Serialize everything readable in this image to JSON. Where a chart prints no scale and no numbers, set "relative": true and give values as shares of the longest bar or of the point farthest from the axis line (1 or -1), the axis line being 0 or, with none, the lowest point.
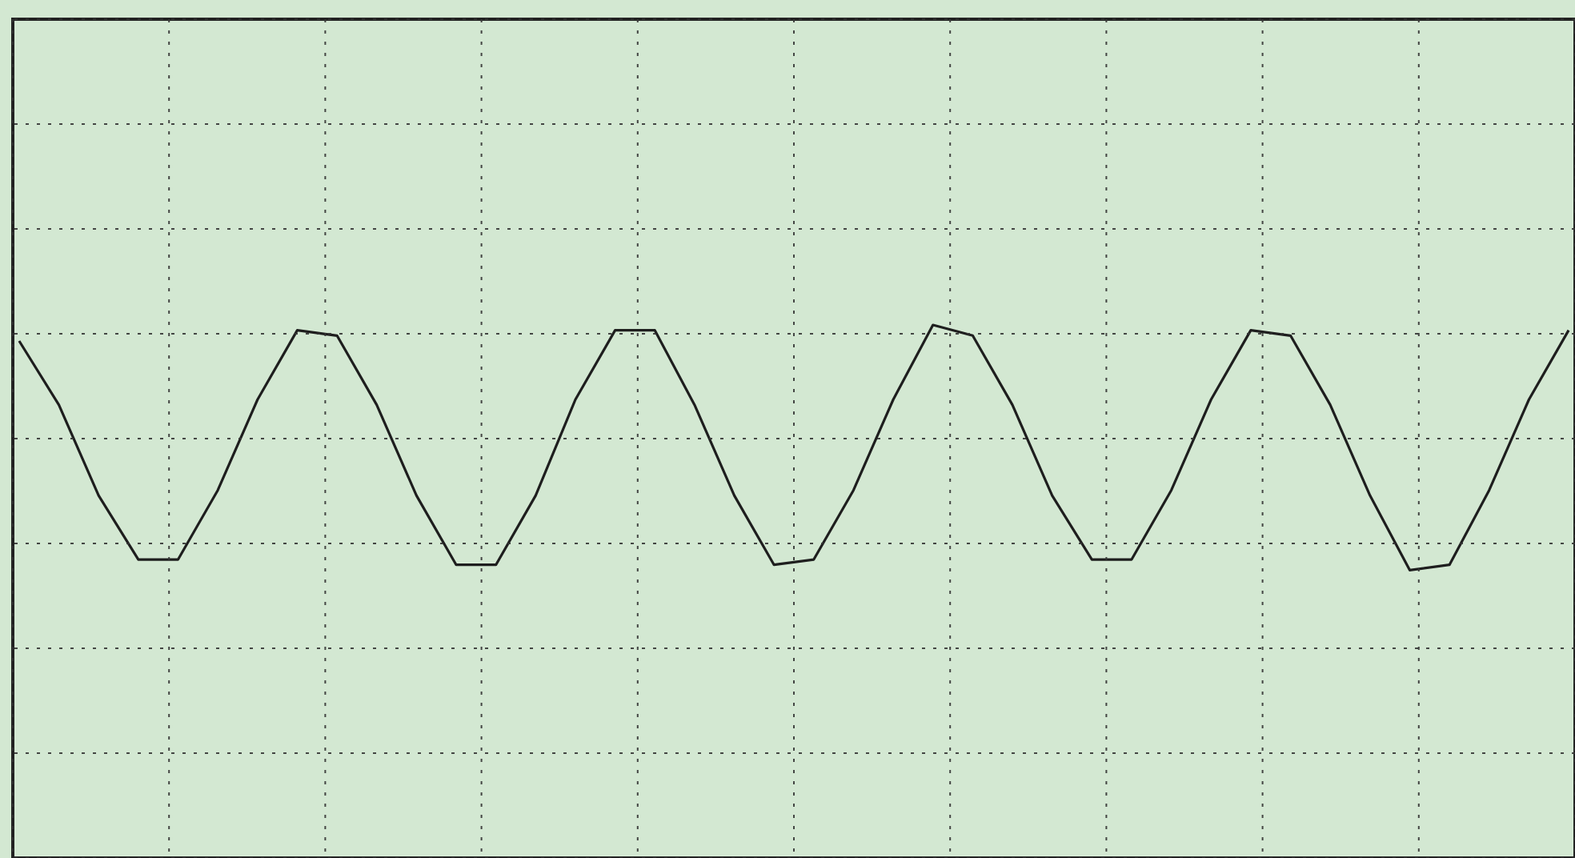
{
  "chart_data": {
    "type": "line",
    "relative": true,
    "grid": true,
    "categories": [
      null,
      null,
      null,
      null,
      null,
      null,
      null,
      null,
      null,
      null,
      null,
      null,
      null,
      null,
      null,
      null,
      null,
      null,
      null,
      null,
      null,
      null,
      null,
      null,
      null,
      null,
      null,
      null,
      null,
      null,
      null,
      null,
      null,
      null,
      null,
      null,
      null,
      null,
      null,
      null
    ],
    "series": [
      {
        "color": "#1e1e1e",
        "values": [
          0.97,
          0.85,
          0.68,
          0.56,
          0.56,
          0.69,
          0.86,
          0.99,
          0.98,
          0.85,
          0.68,
          0.55,
          0.55,
          0.68,
          0.86,
          0.99,
          0.99,
          0.85,
          0.68,
          0.55,
          0.56,
          0.69,
          0.86,
          1,
          0.98,
          0.85,
          0.68,
          0.56,
          0.56,
          0.69,
          0.86,
          0.99,
          0.98,
          0.85,
          0.68,
          0.54,
          0.55,
          0.69,
          0.86,
          0.99
        ]
      }
    ]
  }
}
